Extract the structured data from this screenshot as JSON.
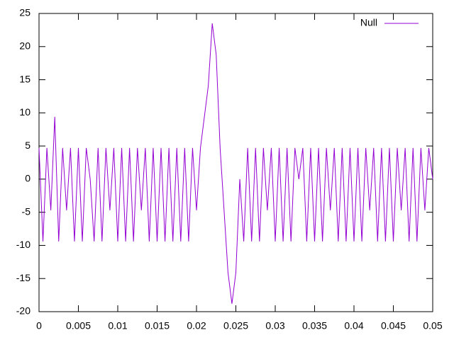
{
  "chart_data": {
    "type": "line",
    "x": [
      0,
      0.0005,
      0.001,
      0.0015,
      0.002,
      0.0025,
      0.003,
      0.0035,
      0.004,
      0.0045,
      0.005,
      0.0055,
      0.006,
      0.0065,
      0.007,
      0.0075,
      0.008,
      0.0085,
      0.009,
      0.0095,
      0.01,
      0.0105,
      0.011,
      0.0115,
      0.012,
      0.0125,
      0.013,
      0.0135,
      0.014,
      0.0145,
      0.015,
      0.0155,
      0.016,
      0.0165,
      0.017,
      0.0175,
      0.018,
      0.0185,
      0.019,
      0.0195,
      0.02,
      0.0205,
      0.021,
      0.0215,
      0.022,
      0.0225,
      0.023,
      0.0235,
      0.024,
      0.0245,
      0.025,
      0.0255,
      0.026,
      0.0265,
      0.027,
      0.0275,
      0.028,
      0.0285,
      0.029,
      0.0295,
      0.03,
      0.0305,
      0.031,
      0.0315,
      0.032,
      0.0325,
      0.033,
      0.0335,
      0.034,
      0.0345,
      0.035,
      0.0355,
      0.036,
      0.0365,
      0.037,
      0.0375,
      0.038,
      0.0385,
      0.039,
      0.0395,
      0.04,
      0.0405,
      0.041,
      0.0415,
      0.042,
      0.0425,
      0.043,
      0.0435,
      0.044,
      0.0445,
      0.045,
      0.0455,
      0.046,
      0.0465,
      0.047,
      0.0475,
      0.048,
      0.0485,
      0.049,
      0.0495,
      0.05
    ],
    "series": [
      {
        "name": "Null",
        "color": "#9400d3",
        "values": [
          4.7,
          -9.4,
          4.7,
          -4.7,
          9.4,
          -9.4,
          4.7,
          -4.7,
          4.7,
          -9.4,
          4.7,
          -9.4,
          4.7,
          0,
          -9.4,
          4.7,
          -9.4,
          4.7,
          -4.7,
          4.7,
          -9.4,
          4.7,
          -9.4,
          4.7,
          -9.4,
          4.7,
          -4.7,
          4.7,
          -9.4,
          4.7,
          -9.4,
          4.7,
          -9.4,
          4.7,
          -9.4,
          4.7,
          -9.4,
          4.7,
          -9.4,
          4.7,
          -4.7,
          4.7,
          9.4,
          14.1,
          23.5,
          18.8,
          4.7,
          -4.7,
          -14.1,
          -18.8,
          -14.1,
          0,
          -9.4,
          4.7,
          -9.4,
          4.7,
          -9.4,
          4.7,
          -4.7,
          4.7,
          -9.4,
          4.7,
          -9.4,
          4.7,
          -9.4,
          4.7,
          0,
          4.7,
          -9.4,
          4.7,
          -9.4,
          4.7,
          -9.4,
          4.7,
          -4.7,
          4.7,
          -9.4,
          4.7,
          -9.4,
          4.7,
          -9.4,
          4.7,
          -9.4,
          4.7,
          -4.7,
          4.7,
          -9.4,
          4.7,
          -9.4,
          4.7,
          -9.4,
          4.7,
          -4.7,
          4.7,
          -9.4,
          4.7,
          -9.4,
          4.7,
          -4.7,
          4.7,
          0
        ]
      }
    ],
    "xlim": [
      0,
      0.05
    ],
    "xticks": [
      0,
      0.005,
      0.01,
      0.015,
      0.02,
      0.025,
      0.03,
      0.035,
      0.04,
      0.045,
      0.05
    ],
    "ylim": [
      -20,
      25
    ],
    "yticks": [
      -20,
      -15,
      -10,
      -5,
      0,
      5,
      10,
      15,
      20,
      25
    ],
    "legend": "top-right"
  }
}
